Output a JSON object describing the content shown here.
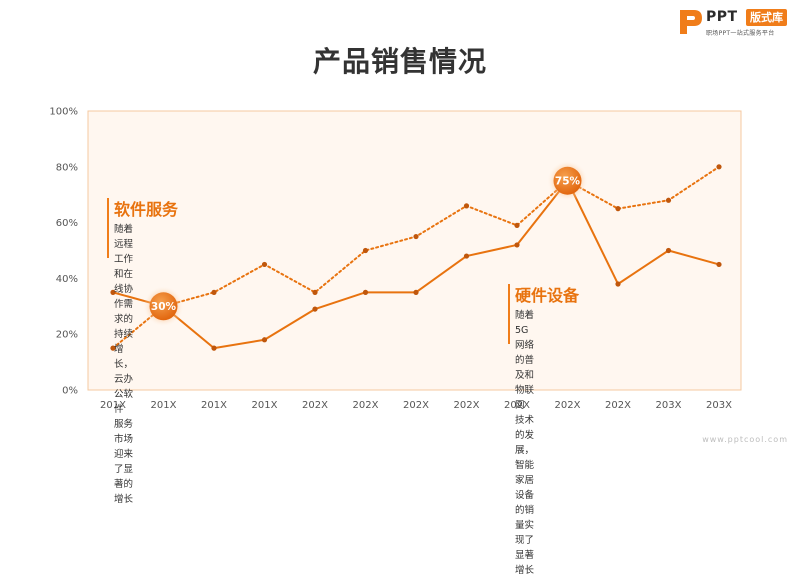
{
  "brand": {
    "logo_text": "PPT",
    "tag": "版式库",
    "slogan": "职场PPT一站式服务平台"
  },
  "title": "产品销售情况",
  "watermark": "www.pptcool.com",
  "annotations": {
    "software": {
      "heading": "软件服务",
      "lines": [
        "随着远程工作和在线协作需",
        "求的持续增长，云办公软件",
        "服务市场迎来了显著的增长"
      ]
    },
    "hardware": {
      "heading": "硬件设备",
      "lines": [
        "随着5G网络的普及和物联网",
        "技术的发展，智能家居设备",
        "的销量实现了显著增长"
      ]
    }
  },
  "colors": {
    "accent": "#e8730f",
    "plot_bg": "#fff7f0",
    "plot_border": "#f5c9a0"
  },
  "chart_data": {
    "type": "line",
    "categories": [
      "201X",
      "201X",
      "201X",
      "201X",
      "202X",
      "202X",
      "202X",
      "202X",
      "202X",
      "202X",
      "202X",
      "203X",
      "203X"
    ],
    "y_ticks": [
      "0%",
      "20%",
      "40%",
      "60%",
      "80%",
      "100%"
    ],
    "ylim": [
      0,
      100
    ],
    "grid": false,
    "series": [
      {
        "style": "solid",
        "values": [
          35,
          30,
          15,
          18,
          29,
          35,
          35,
          48,
          52,
          75,
          38,
          50,
          45
        ]
      },
      {
        "style": "dotted",
        "values": [
          15,
          30,
          35,
          45,
          35,
          50,
          55,
          66,
          59,
          75,
          65,
          68,
          80
        ]
      }
    ],
    "highlights": [
      {
        "index": 1,
        "value": 30,
        "label": "30%"
      },
      {
        "index": 9,
        "value": 75,
        "label": "75%"
      }
    ]
  }
}
